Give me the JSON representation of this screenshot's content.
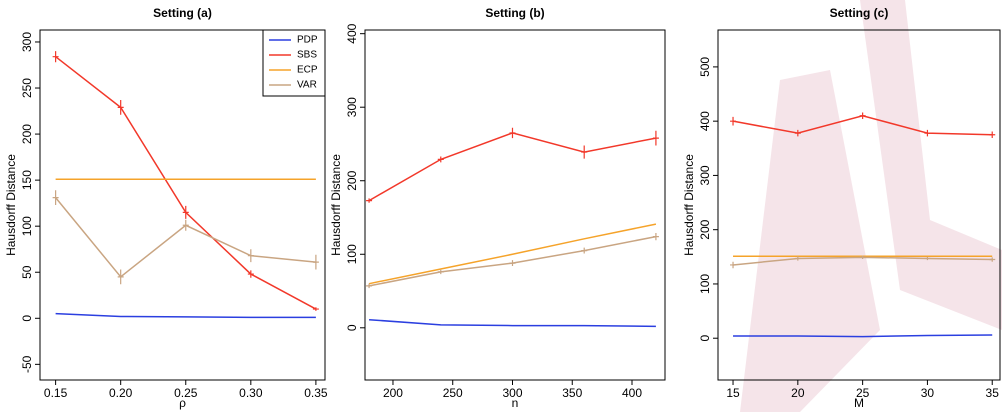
{
  "chart_data": [
    {
      "type": "line",
      "title": "Setting (a)",
      "xlabel": "ρ",
      "ylabel": "Hausdorff Distance",
      "x": [
        0.15,
        0.2,
        0.25,
        0.3,
        0.35
      ],
      "xlim": [
        0.138,
        0.357
      ],
      "xticks": [
        0.15,
        {
          "value": 0.2,
          "label": "0.20"
        },
        0.25,
        {
          "value": 0.3,
          "label": "0.30"
        },
        0.35
      ],
      "ylim": [
        -67,
        313
      ],
      "yticks": [
        -50,
        0,
        50,
        100,
        150,
        200,
        250,
        300
      ],
      "legend": "top-right",
      "series": [
        {
          "name": "PDP",
          "color": "#2b3fe0",
          "values": [
            5,
            2,
            1.5,
            1,
            1
          ]
        },
        {
          "name": "SBS",
          "color": "#f2382a",
          "values": [
            284,
            229,
            115,
            48,
            10
          ],
          "errors": [
            6,
            8,
            7,
            4,
            2
          ]
        },
        {
          "name": "ECP",
          "color": "#f5a32a",
          "values": [
            151,
            151,
            151,
            151,
            151
          ]
        },
        {
          "name": "VAR",
          "color": "#c9a582",
          "values": [
            131,
            45,
            101,
            68,
            61
          ],
          "errors": [
            8,
            8,
            6,
            7,
            8
          ]
        }
      ]
    },
    {
      "type": "line",
      "title": "Setting (b)",
      "xlabel": "n",
      "ylabel": "Hausdorff Distance",
      "x": [
        180,
        240,
        300,
        360,
        420
      ],
      "xlim": [
        176.6,
        427.6
      ],
      "xticks": [
        200,
        250,
        300,
        350,
        400
      ],
      "ylim": [
        -71,
        405
      ],
      "yticks": [
        0,
        100,
        200,
        300,
        400
      ],
      "series": [
        {
          "name": "PDP",
          "color": "#2b3fe0",
          "values": [
            11,
            4,
            3,
            3,
            2
          ]
        },
        {
          "name": "SBS",
          "color": "#f2382a",
          "values": [
            173,
            229,
            265,
            239,
            258
          ],
          "errors": [
            3,
            4,
            7,
            9,
            10
          ]
        },
        {
          "name": "ECP",
          "color": "#f5a32a",
          "values": [
            60,
            80,
            100,
            121,
            141
          ]
        },
        {
          "name": "VAR",
          "color": "#c9a582",
          "values": [
            57,
            76,
            88,
            105,
            124
          ],
          "errors": [
            3,
            3,
            4,
            4,
            5
          ]
        }
      ]
    },
    {
      "type": "line",
      "title": "Setting (c)",
      "xlabel": "M",
      "ylabel": "Hausdorff Distance",
      "x": [
        15,
        20,
        25,
        30,
        35
      ],
      "xlim": [
        13.84,
        35.6
      ],
      "xticks": [
        15,
        20,
        25,
        30,
        35
      ],
      "ylim": [
        -77,
        568
      ],
      "yticks": [
        0,
        100,
        200,
        300,
        400,
        500
      ],
      "series": [
        {
          "name": "PDP",
          "color": "#2b3fe0",
          "values": [
            4,
            4,
            3,
            5,
            6
          ]
        },
        {
          "name": "SBS",
          "color": "#f2382a",
          "values": [
            400,
            378,
            410,
            378,
            375
          ],
          "errors": [
            8,
            6,
            6,
            6,
            6
          ]
        },
        {
          "name": "ECP",
          "color": "#f5a32a",
          "values": [
            151,
            151,
            151,
            151,
            151
          ]
        },
        {
          "name": "VAR",
          "color": "#c9a582",
          "values": [
            135,
            147,
            149,
            147,
            145
          ],
          "errors": [
            6,
            4,
            3,
            3,
            4
          ]
        }
      ]
    }
  ]
}
